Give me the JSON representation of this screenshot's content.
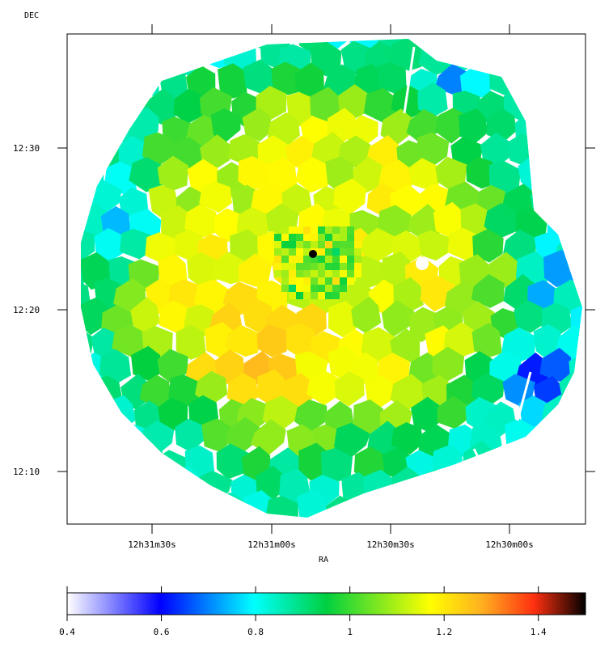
{
  "chart_data": {
    "type": "heatmap",
    "title": "",
    "xlabel": "RA",
    "ylabel": "DEC",
    "x_ticks": [
      "12h31m30s",
      "12h31m00s",
      "12h30m30s",
      "12h30m00s"
    ],
    "y_ticks": [
      "12:30",
      "12:20",
      "12:10"
    ],
    "grid": false,
    "colorbar": {
      "min": 0.4,
      "max": 1.5,
      "ticks": [
        "0.4",
        "0.6",
        "0.8",
        "1",
        "1.2",
        "1.4"
      ],
      "colormap": [
        "#ffffff",
        "#0000ff",
        "#00ffff",
        "#00d040",
        "#ffff00",
        "#ffa020",
        "#ff3010",
        "#000000"
      ]
    },
    "map_description_values": {
      "outer_ring_typical": 0.85,
      "inner_region_typical": 1.1,
      "southwest_peak": 1.25,
      "west_low_region": 0.55,
      "center_peak": 1.5
    }
  }
}
